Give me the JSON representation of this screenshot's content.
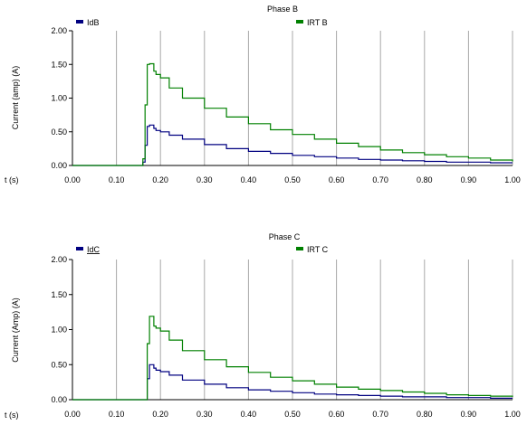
{
  "chart_data": [
    {
      "type": "line",
      "title": "Phase B",
      "xlabel": "t (s)",
      "ylabel": "Current (amp) (A)",
      "xlim": [
        0.0,
        1.0
      ],
      "ylim": [
        0.0,
        2.0
      ],
      "x_ticks": [
        "0.00",
        "0.10",
        "0.20",
        "0.30",
        "0.40",
        "0.50",
        "0.60",
        "0.70",
        "0.80",
        "0.90",
        "1.00"
      ],
      "y_ticks": [
        "0.00",
        "0.50",
        "1.00",
        "1.50",
        "2.00"
      ],
      "grid": "vertical",
      "legend_position": "top",
      "series": [
        {
          "name": "IdB",
          "color": "#000080",
          "x": [
            0.0,
            0.155,
            0.16,
            0.165,
            0.17,
            0.175,
            0.18,
            0.185,
            0.19,
            0.2,
            0.22,
            0.25,
            0.3,
            0.35,
            0.4,
            0.45,
            0.5,
            0.55,
            0.6,
            0.65,
            0.7,
            0.75,
            0.8,
            0.85,
            0.9,
            0.95,
            1.0
          ],
          "y": [
            0.0,
            0.0,
            0.05,
            0.3,
            0.58,
            0.6,
            0.6,
            0.55,
            0.52,
            0.5,
            0.45,
            0.39,
            0.31,
            0.25,
            0.21,
            0.18,
            0.15,
            0.13,
            0.11,
            0.09,
            0.08,
            0.07,
            0.06,
            0.05,
            0.05,
            0.04,
            0.04
          ]
        },
        {
          "name": "IRT B",
          "color": "#008000",
          "x": [
            0.0,
            0.155,
            0.16,
            0.165,
            0.17,
            0.175,
            0.18,
            0.185,
            0.19,
            0.2,
            0.22,
            0.25,
            0.3,
            0.35,
            0.4,
            0.45,
            0.5,
            0.55,
            0.6,
            0.65,
            0.7,
            0.75,
            0.8,
            0.85,
            0.9,
            0.95,
            1.0
          ],
          "y": [
            0.0,
            0.0,
            0.1,
            0.9,
            1.5,
            1.51,
            1.51,
            1.4,
            1.35,
            1.3,
            1.15,
            1.0,
            0.85,
            0.72,
            0.62,
            0.53,
            0.46,
            0.39,
            0.33,
            0.28,
            0.23,
            0.19,
            0.16,
            0.13,
            0.11,
            0.08,
            0.06
          ]
        }
      ]
    },
    {
      "type": "line",
      "title": "Phase C",
      "xlabel": "t (s)",
      "ylabel": "Current (Amp) (A)",
      "xlim": [
        0.0,
        1.0
      ],
      "ylim": [
        0.0,
        2.0
      ],
      "x_ticks": [
        "0.00",
        "0.10",
        "0.20",
        "0.30",
        "0.40",
        "0.50",
        "0.60",
        "0.70",
        "0.80",
        "0.90",
        "1.00"
      ],
      "y_ticks": [
        "0.00",
        "0.50",
        "1.00",
        "1.50",
        "2.00"
      ],
      "grid": "vertical",
      "legend_position": "top",
      "series": [
        {
          "name": "IdC",
          "color": "#000080",
          "x": [
            0.0,
            0.165,
            0.17,
            0.175,
            0.18,
            0.185,
            0.19,
            0.2,
            0.22,
            0.25,
            0.3,
            0.35,
            0.4,
            0.45,
            0.5,
            0.55,
            0.6,
            0.65,
            0.7,
            0.75,
            0.8,
            0.85,
            0.9,
            0.95,
            1.0
          ],
          "y": [
            0.0,
            0.0,
            0.3,
            0.5,
            0.5,
            0.45,
            0.42,
            0.4,
            0.35,
            0.28,
            0.22,
            0.17,
            0.14,
            0.12,
            0.1,
            0.08,
            0.07,
            0.06,
            0.05,
            0.04,
            0.04,
            0.03,
            0.03,
            0.02,
            0.02
          ]
        },
        {
          "name": "IRT C",
          "color": "#008000",
          "x": [
            0.0,
            0.165,
            0.17,
            0.175,
            0.18,
            0.185,
            0.19,
            0.2,
            0.22,
            0.25,
            0.3,
            0.35,
            0.4,
            0.45,
            0.5,
            0.55,
            0.6,
            0.65,
            0.7,
            0.75,
            0.8,
            0.85,
            0.9,
            0.95,
            1.0
          ],
          "y": [
            0.0,
            0.0,
            0.8,
            1.19,
            1.19,
            1.05,
            1.02,
            0.98,
            0.85,
            0.7,
            0.57,
            0.47,
            0.39,
            0.32,
            0.27,
            0.22,
            0.18,
            0.15,
            0.13,
            0.11,
            0.09,
            0.07,
            0.06,
            0.05,
            0.04
          ]
        }
      ]
    }
  ]
}
